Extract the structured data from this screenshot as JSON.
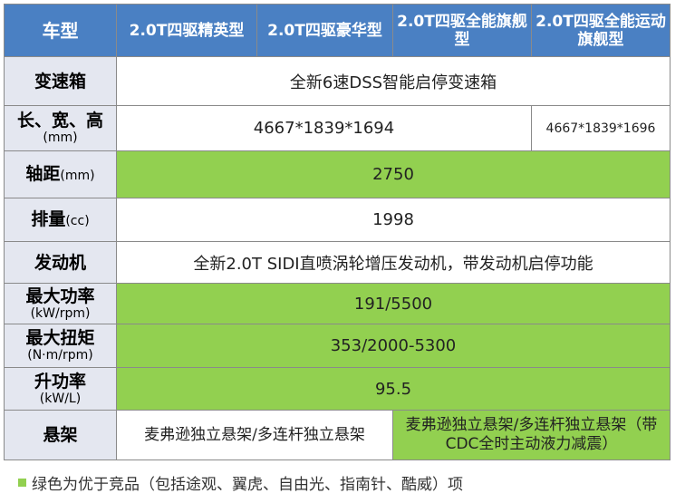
{
  "header": {
    "col0": "车型",
    "col1": "2.0T四驱精英型",
    "col2": "2.0T四驱豪华型",
    "col3": "2.0T四驱全能旗舰型",
    "col4": "2.0T四驱全能运动旗舰型"
  },
  "rows": {
    "transmission": {
      "label": "变速箱",
      "value": "全新6速DSS智能启停变速箱"
    },
    "dimensions": {
      "label": "长、宽、高",
      "sub": "(mm)",
      "value": "4667*1839*1694",
      "value_last": "4667*1839*1696"
    },
    "wheelbase": {
      "label": "轴距",
      "sub": "(mm)",
      "value": "2750"
    },
    "displacement": {
      "label": "排量",
      "sub": "(cc)",
      "value": "1998"
    },
    "engine": {
      "label": "发动机",
      "value": "全新2.0T SIDI直喷涡轮增压发动机，带发动机启停功能"
    },
    "max_power": {
      "label": "最大功率",
      "sub": "(kW/rpm)",
      "value": "191/5500"
    },
    "max_torque": {
      "label": "最大扭矩",
      "sub": "(N·m/rpm)",
      "value": "353/2000-5300"
    },
    "specific_power": {
      "label": "升功率",
      "sub": "(kW/L)",
      "value": "95.5"
    },
    "suspension": {
      "label": "悬架",
      "value_a": "麦弗逊独立悬架/多连杆独立悬架",
      "value_b": "麦弗逊独立悬架/多连杆独立悬架（带CDC全时主动液力减震）"
    }
  },
  "footnote": "绿色为优于竞品（包括途观、翼虎、自由光、指南针、酷威）项",
  "colors": {
    "header_bg": "#4a80c3",
    "label_bg": "#e4e7f0",
    "highlight_green": "#92d050"
  }
}
